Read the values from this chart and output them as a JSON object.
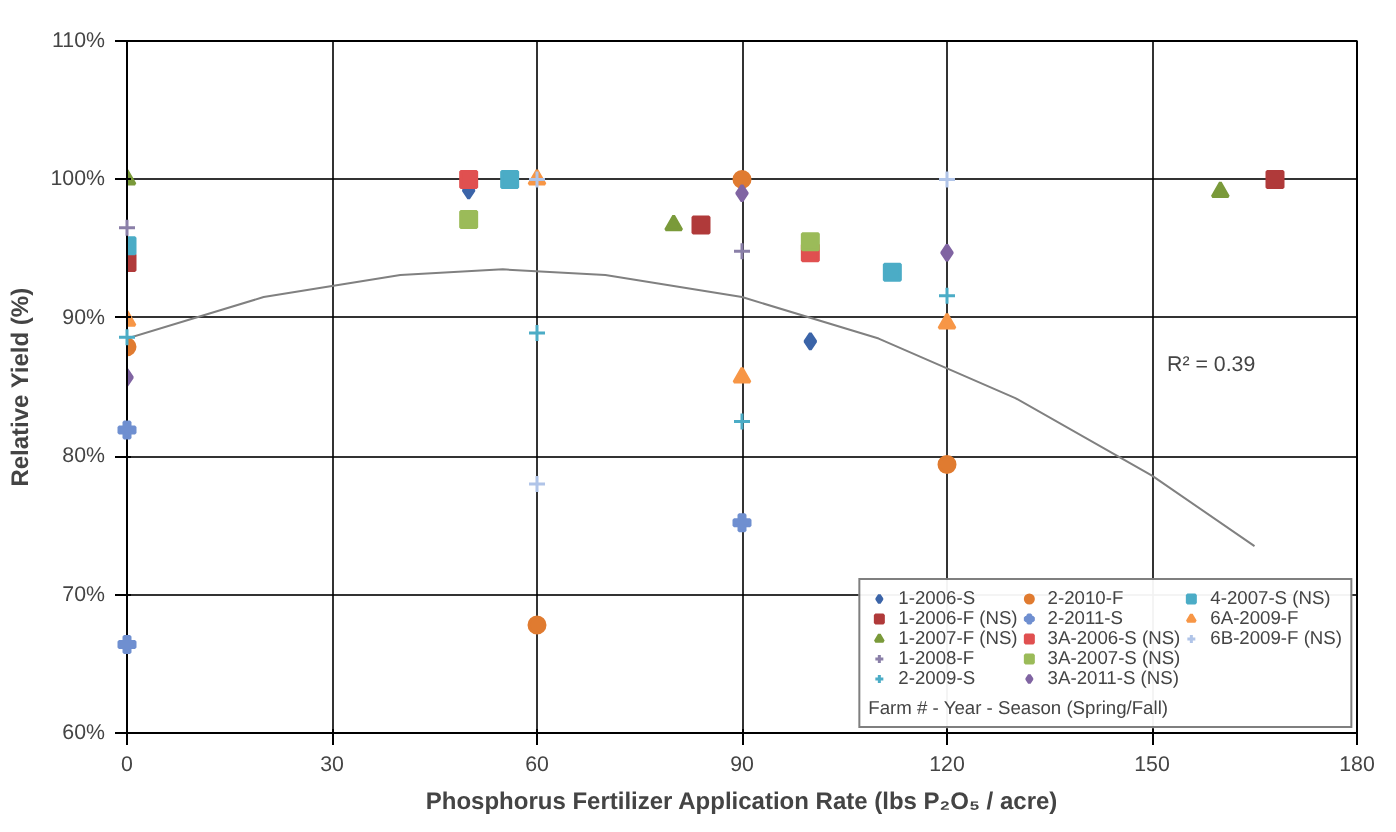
{
  "chart_data": {
    "type": "scatter",
    "xlabel": "Phosphorus Fertilizer Application Rate (lbs P₂O₅ / acre)",
    "ylabel": "Relative Yield (%)",
    "legend_title": "Farm # - Year - Season (Spring/Fall)",
    "xlim": [
      0,
      180
    ],
    "xticks": [
      0,
      30,
      60,
      90,
      120,
      150,
      180
    ],
    "ylim": [
      60,
      110
    ],
    "yticks": [
      {
        "value": 60,
        "label": "60%"
      },
      {
        "value": 70,
        "label": "70%"
      },
      {
        "value": 80,
        "label": "80%"
      },
      {
        "value": 90,
        "label": "90%"
      },
      {
        "value": 100,
        "label": "100%"
      },
      {
        "value": 110,
        "label": "110%"
      }
    ],
    "grid": true,
    "legend": "bottom right",
    "annotations": [
      "R² = 0.39"
    ],
    "series": [
      {
        "name": "1-2006-S",
        "color": "#3b64a8",
        "marker": "diamond",
        "x": [
          50,
          100
        ],
        "values": [
          99.2,
          88.3
        ]
      },
      {
        "name": "1-2006-F (NS)",
        "color": "#b03a3a",
        "marker": "square",
        "x": [
          0,
          84,
          168
        ],
        "values": [
          94.0,
          96.7,
          100
        ]
      },
      {
        "name": "1-2007-F (NS)",
        "color": "#7a9a3a",
        "marker": "triangle",
        "x": [
          0,
          80,
          160
        ],
        "values": [
          100,
          96.7,
          99.1
        ]
      },
      {
        "name": "1-2008-F",
        "color": "#8a7fa8",
        "marker": "cross",
        "x": [
          0,
          90
        ],
        "values": [
          96.5,
          94.8
        ]
      },
      {
        "name": "2-2009-S",
        "color": "#4bacc6",
        "marker": "cross",
        "x": [
          0,
          60,
          90,
          120
        ],
        "values": [
          88.6,
          88.9,
          82.5,
          91.6
        ]
      },
      {
        "name": "2-2010-F",
        "color": "#e07b30",
        "marker": "circle",
        "x": [
          0,
          60,
          90,
          120
        ],
        "values": [
          87.9,
          67.8,
          100,
          79.4
        ]
      },
      {
        "name": "2-2011-S",
        "color": "#6f8fd0",
        "marker": "plus",
        "x": [
          0,
          0,
          90
        ],
        "values": [
          81.9,
          66.4,
          75.2
        ]
      },
      {
        "name": "3A-2006-S (NS)",
        "color": "#e05050",
        "marker": "square",
        "x": [
          50,
          100
        ],
        "values": [
          100,
          94.7
        ]
      },
      {
        "name": "3A-2007-S (NS)",
        "color": "#9bbb59",
        "marker": "square",
        "x": [
          50,
          100
        ],
        "values": [
          97.1,
          95.5
        ]
      },
      {
        "name": "3A-2011-S (NS)",
        "color": "#8064a2",
        "marker": "diamond",
        "x": [
          0,
          90,
          120
        ],
        "values": [
          85.7,
          99.0,
          94.7
        ]
      },
      {
        "name": "4-2007-S (NS)",
        "color": "#4bacc6",
        "marker": "square",
        "x": [
          0,
          56,
          112
        ],
        "values": [
          95.2,
          100,
          93.3
        ]
      },
      {
        "name": "6A-2009-F",
        "color": "#f79646",
        "marker": "triangle",
        "x": [
          0,
          60,
          90,
          120
        ],
        "values": [
          89.8,
          100,
          85.7,
          89.6
        ]
      },
      {
        "name": "6B-2009-F (NS)",
        "color": "#b0c4e8",
        "marker": "cross",
        "x": [
          60,
          60,
          120
        ],
        "values": [
          100,
          78.0,
          100
        ]
      },
      {
        "type": "line",
        "color": "#808080",
        "x": [
          0,
          20,
          40,
          55,
          70,
          90,
          110,
          130,
          150,
          165
        ],
        "values": [
          88.5,
          91.5,
          93.1,
          93.5,
          93.1,
          91.5,
          88.5,
          84.2,
          78.6,
          73.5
        ]
      }
    ]
  }
}
